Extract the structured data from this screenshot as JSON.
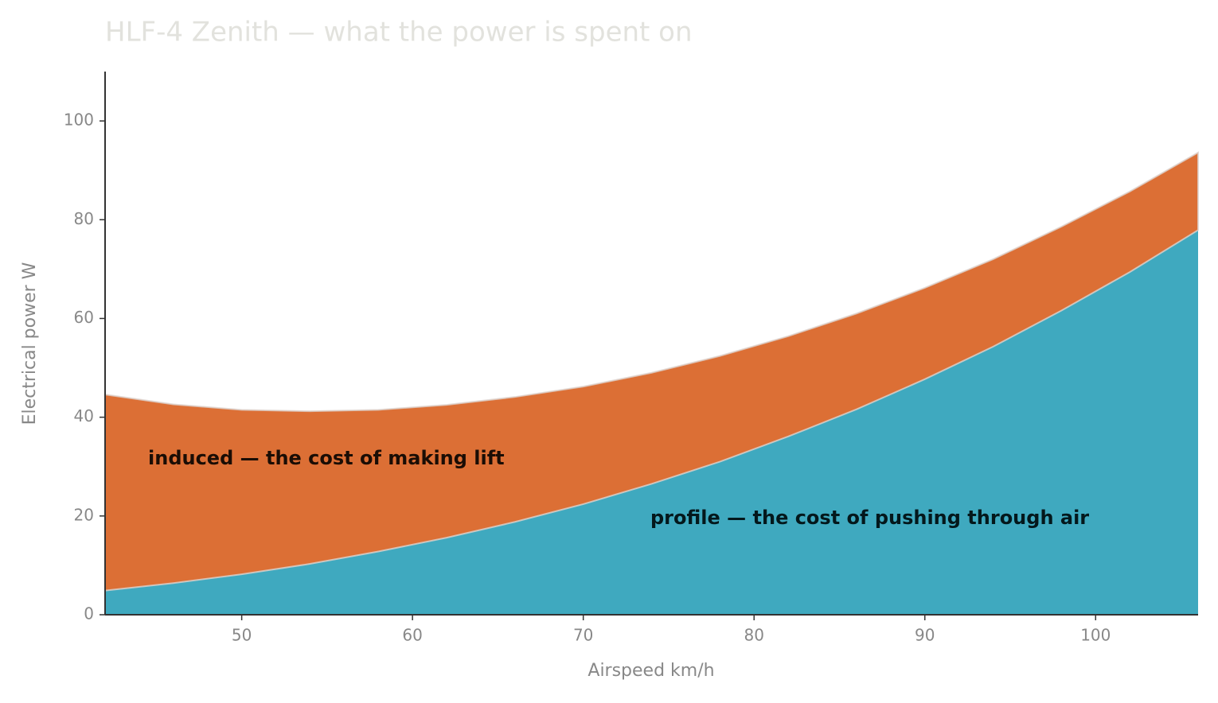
{
  "chart_data": {
    "type": "stacked_area",
    "title": "HLF-4 Zenith — what the power is spent on",
    "x_label": "Airspeed  km/h",
    "y_label": "Electrical power  W",
    "x": [
      42,
      46,
      50,
      54,
      58,
      62,
      66,
      70,
      74,
      78,
      82,
      86,
      90,
      94,
      98,
      102,
      106
    ],
    "series": [
      {
        "name": "profile — the cost of pushing through air",
        "color": "#3fa9bf",
        "values": [
          4.9,
          6.4,
          8.2,
          10.3,
          12.8,
          15.6,
          18.8,
          22.4,
          26.5,
          31.0,
          36.1,
          41.6,
          47.7,
          54.3,
          61.6,
          69.4,
          77.9
        ]
      },
      {
        "name": "induced — the cost of making lift",
        "color": "#dc6f35",
        "values": [
          39.7,
          36.2,
          33.3,
          30.9,
          28.7,
          26.9,
          25.3,
          23.8,
          22.5,
          21.4,
          20.3,
          19.4,
          18.5,
          17.7,
          17.0,
          16.3,
          15.7
        ]
      }
    ],
    "xlim": [
      42,
      106
    ],
    "ylim": [
      0,
      110
    ],
    "xticks": [
      50,
      60,
      70,
      80,
      90,
      100
    ],
    "yticks": [
      0,
      20,
      40,
      60,
      80,
      100
    ],
    "grid": false
  }
}
